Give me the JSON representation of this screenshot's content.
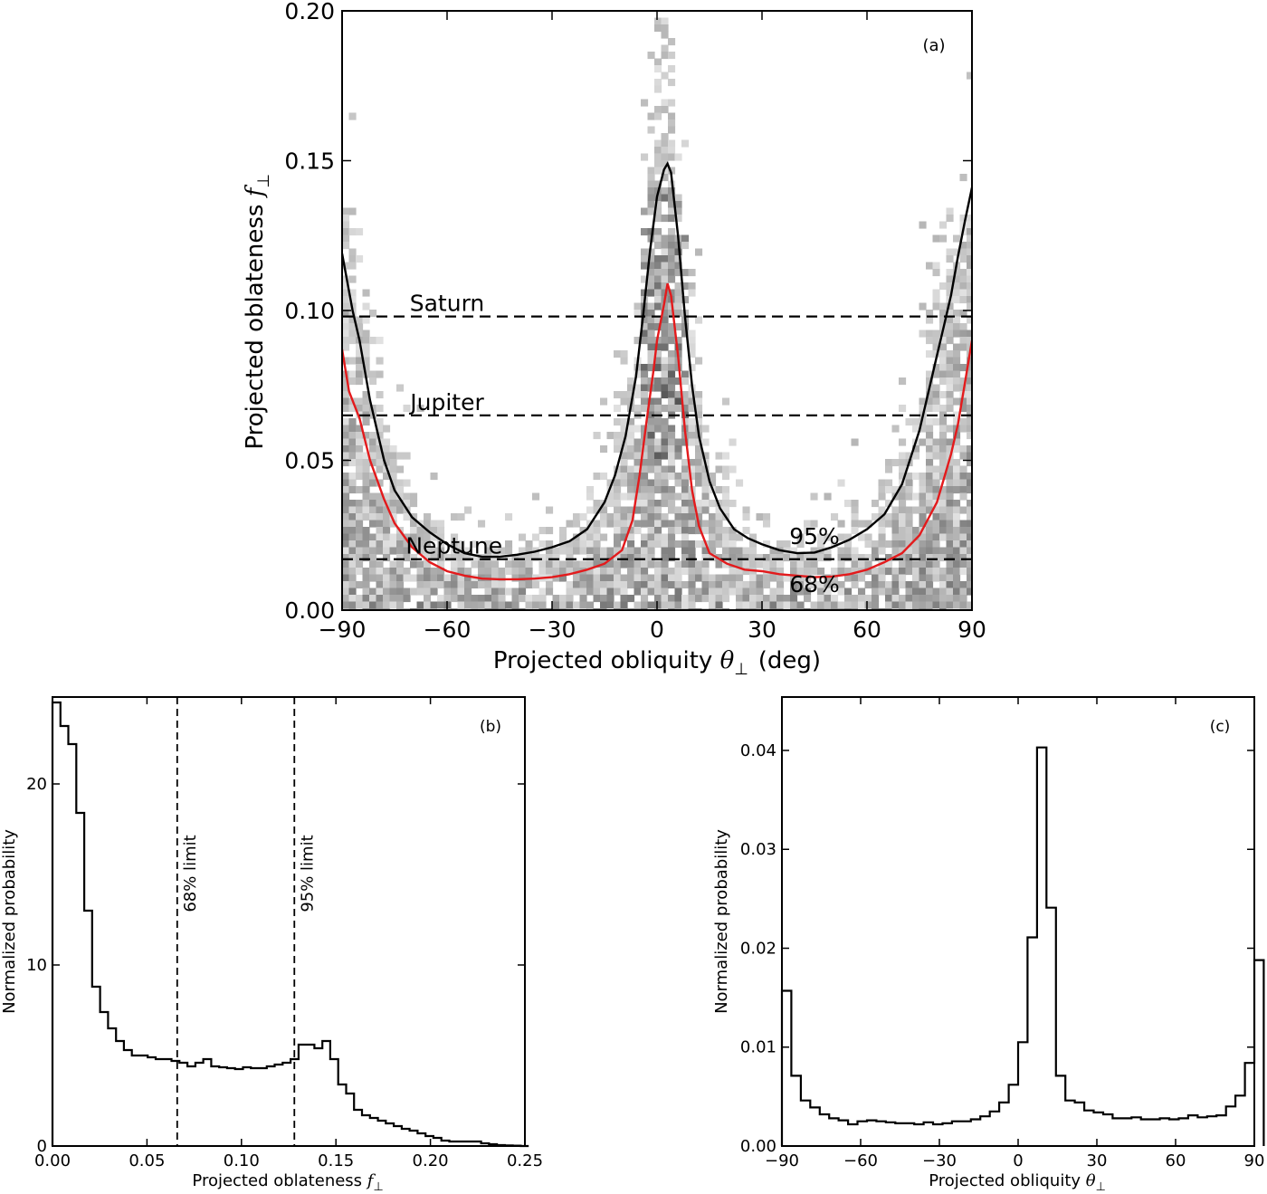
{
  "chart_data": [
    {
      "id": "a",
      "type": "heatmap",
      "panel_label": "(a)",
      "xlabel": "Projected obliquity θ⊥ (deg)",
      "ylabel": "Projected oblateness f⊥",
      "xlim": [
        -90,
        90
      ],
      "ylim": [
        0,
        0.2
      ],
      "xticks": [
        -90,
        -60,
        -30,
        0,
        30,
        60,
        90
      ],
      "xtick_labels": [
        "−90",
        "−60",
        "−30",
        "0",
        "30",
        "60",
        "90"
      ],
      "yticks": [
        0,
        0.05,
        0.1,
        0.15,
        0.2
      ],
      "ytick_labels": [
        "0.00",
        "0.05",
        "0.10",
        "0.15",
        "0.20"
      ],
      "reference_lines": [
        {
          "name": "Saturn",
          "y": 0.098
        },
        {
          "name": "Jupiter",
          "y": 0.065
        },
        {
          "name": "Neptune",
          "y": 0.017
        }
      ],
      "contours": [
        {
          "name": "95%",
          "color": "#000000",
          "x": [
            -90,
            -87,
            -85,
            -82,
            -78,
            -75,
            -70,
            -65,
            -60,
            -55,
            -50,
            -45,
            -40,
            -35,
            -30,
            -25,
            -20,
            -15,
            -12,
            -9,
            -6,
            -4,
            -2,
            0,
            2,
            3,
            4,
            6,
            8,
            10,
            12,
            15,
            18,
            22,
            26,
            30,
            35,
            40,
            45,
            50,
            55,
            60,
            65,
            70,
            75,
            78,
            80,
            82,
            84,
            86,
            88,
            90
          ],
          "y": [
            0.119,
            0.1,
            0.09,
            0.07,
            0.05,
            0.04,
            0.031,
            0.026,
            0.022,
            0.019,
            0.0178,
            0.0178,
            0.0185,
            0.0195,
            0.021,
            0.023,
            0.027,
            0.036,
            0.045,
            0.058,
            0.078,
            0.098,
            0.12,
            0.138,
            0.147,
            0.149,
            0.146,
            0.125,
            0.098,
            0.075,
            0.058,
            0.043,
            0.034,
            0.027,
            0.024,
            0.022,
            0.02,
            0.019,
            0.0192,
            0.021,
            0.0235,
            0.027,
            0.032,
            0.042,
            0.06,
            0.075,
            0.085,
            0.095,
            0.105,
            0.118,
            0.13,
            0.141
          ]
        },
        {
          "name": "68%",
          "color": "#e31a1c",
          "x": [
            -90,
            -88,
            -85,
            -82,
            -78,
            -75,
            -70,
            -65,
            -60,
            -55,
            -50,
            -45,
            -40,
            -35,
            -30,
            -25,
            -20,
            -15,
            -10,
            -7,
            -5,
            -3,
            -1,
            0,
            2,
            3,
            4,
            6,
            8,
            10,
            12,
            15,
            20,
            25,
            30,
            35,
            40,
            45,
            50,
            55,
            60,
            65,
            70,
            75,
            80,
            82,
            84,
            86,
            88,
            90
          ],
          "y": [
            0.087,
            0.073,
            0.064,
            0.05,
            0.037,
            0.029,
            0.021,
            0.016,
            0.013,
            0.0115,
            0.0105,
            0.0103,
            0.0103,
            0.0105,
            0.011,
            0.012,
            0.0135,
            0.0155,
            0.02,
            0.03,
            0.045,
            0.063,
            0.08,
            0.09,
            0.102,
            0.109,
            0.105,
            0.085,
            0.06,
            0.04,
            0.028,
            0.019,
            0.0155,
            0.0135,
            0.013,
            0.012,
            0.0115,
            0.011,
            0.0112,
            0.012,
            0.0135,
            0.016,
            0.019,
            0.025,
            0.036,
            0.044,
            0.052,
            0.062,
            0.076,
            0.09
          ]
        }
      ],
      "contour_labels": [
        {
          "text": "95%",
          "x": 45,
          "y": 0.022,
          "color": "#000000"
        },
        {
          "text": "68%",
          "x": 45,
          "y": 0.006,
          "color": "#e31a1c"
        }
      ]
    },
    {
      "id": "b",
      "type": "bar",
      "panel_label": "(b)",
      "xlabel": "Projected oblateness f⊥",
      "ylabel": "Normalized probability",
      "xlim": [
        0,
        0.25
      ],
      "ylim": [
        0,
        24.8
      ],
      "xticks": [
        0,
        0.05,
        0.1,
        0.15,
        0.2,
        0.25
      ],
      "xtick_labels": [
        "0.00",
        "0.05",
        "0.10",
        "0.15",
        "0.20",
        "0.25"
      ],
      "yticks": [
        0,
        10,
        20
      ],
      "ytick_labels": [
        "0",
        "10",
        "20"
      ],
      "bin_width": 0.0042,
      "values": [
        24.5,
        23.2,
        22.2,
        18.4,
        13.0,
        8.8,
        7.4,
        6.5,
        5.8,
        5.3,
        5.0,
        5.0,
        4.9,
        4.8,
        4.8,
        4.7,
        4.6,
        4.4,
        4.6,
        4.8,
        4.4,
        4.35,
        4.3,
        4.25,
        4.35,
        4.3,
        4.3,
        4.4,
        4.5,
        4.6,
        4.8,
        5.6,
        5.6,
        5.4,
        5.8,
        4.8,
        3.4,
        2.9,
        2.0,
        1.7,
        1.55,
        1.4,
        1.25,
        1.1,
        0.95,
        0.85,
        0.7,
        0.55,
        0.45,
        0.3,
        0.25,
        0.25,
        0.25,
        0.25,
        0.15,
        0.1,
        0.05,
        0.03,
        0.02,
        0.0
      ],
      "limits": [
        {
          "name": "68% limit",
          "x": 0.066
        },
        {
          "name": "95% limit",
          "x": 0.128
        }
      ]
    },
    {
      "id": "c",
      "type": "bar",
      "panel_label": "(c)",
      "xlabel": "Projected obliquity θ⊥",
      "ylabel": "Normalized probability",
      "xlim": [
        -90,
        90
      ],
      "ylim": [
        0,
        0.0454
      ],
      "xticks": [
        -90,
        -60,
        -30,
        0,
        30,
        60,
        90
      ],
      "xtick_labels": [
        "−90",
        "−60",
        "−30",
        "0",
        "30",
        "60",
        "90"
      ],
      "yticks": [
        0,
        0.01,
        0.02,
        0.03,
        0.04
      ],
      "ytick_labels": [
        "0.00",
        "0.01",
        "0.02",
        "0.03",
        "0.04"
      ],
      "bin_width": 3.6,
      "values": [
        0.0157,
        0.0071,
        0.0046,
        0.0039,
        0.0032,
        0.0028,
        0.0026,
        0.0022,
        0.0025,
        0.0026,
        0.0025,
        0.0024,
        0.0023,
        0.0023,
        0.0022,
        0.0024,
        0.0022,
        0.0023,
        0.0025,
        0.0025,
        0.0027,
        0.003,
        0.0035,
        0.0044,
        0.0062,
        0.0105,
        0.0211,
        0.0403,
        0.0241,
        0.0071,
        0.0046,
        0.0044,
        0.0036,
        0.0034,
        0.0032,
        0.0028,
        0.0028,
        0.0029,
        0.0027,
        0.0027,
        0.0028,
        0.0027,
        0.0028,
        0.0031,
        0.0029,
        0.003,
        0.0031,
        0.004,
        0.0051,
        0.0084,
        0.0188
      ]
    }
  ]
}
